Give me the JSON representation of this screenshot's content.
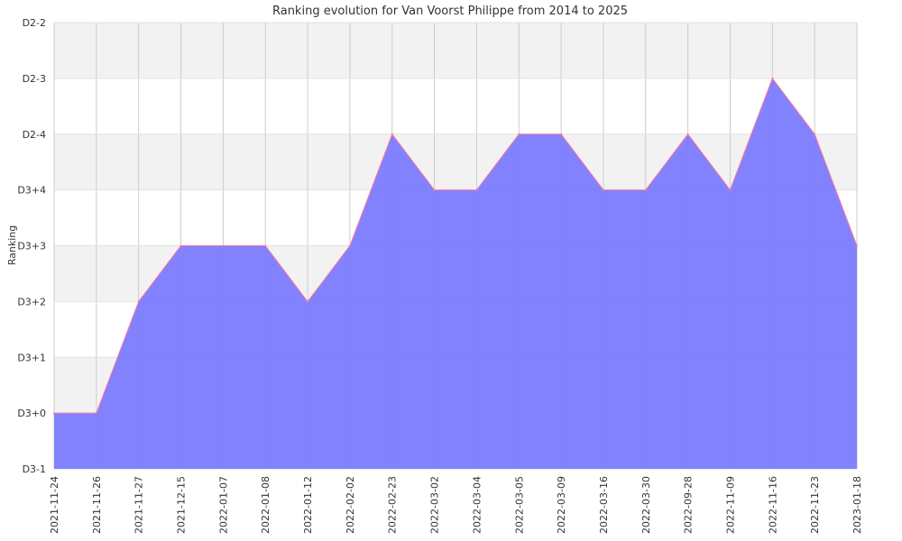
{
  "chart_data": {
    "type": "area",
    "title": "Ranking evolution for Van Voorst Philippe from 2014 to 2025",
    "xlabel": "",
    "ylabel": "Ranking",
    "y_ticks": [
      "D3-1",
      "D3+0",
      "D3+1",
      "D3+2",
      "D3+3",
      "D3+4",
      "D2-4",
      "D2-3",
      "D2-2"
    ],
    "categories": [
      "2021-11-24",
      "2021-11-26",
      "2021-11-27",
      "2021-12-15",
      "2022-01-07",
      "2022-01-08",
      "2022-01-12",
      "2022-02-02",
      "2022-02-23",
      "2022-03-02",
      "2022-03-04",
      "2022-03-05",
      "2022-03-09",
      "2022-03-16",
      "2022-03-30",
      "2022-09-28",
      "2022-11-09",
      "2022-11-16",
      "2022-11-23",
      "2023-01-18"
    ],
    "series": [
      {
        "values": [
          "D3+0",
          "D3+0",
          "D3+2",
          "D3+3",
          "D3+3",
          "D3+3",
          "D3+2",
          "D3+3",
          "D2-4",
          "D3+4",
          "D3+4",
          "D2-4",
          "D2-4",
          "D3+4",
          "D3+4",
          "D2-4",
          "D3+4",
          "D2-3",
          "D2-4",
          "D3+3"
        ]
      }
    ],
    "grid": true,
    "legend": "none",
    "colors": {
      "fill": "#7b7bff",
      "line": "#ff7b9c",
      "band": "#f2f2f2",
      "grid": "#cccccc"
    }
  }
}
